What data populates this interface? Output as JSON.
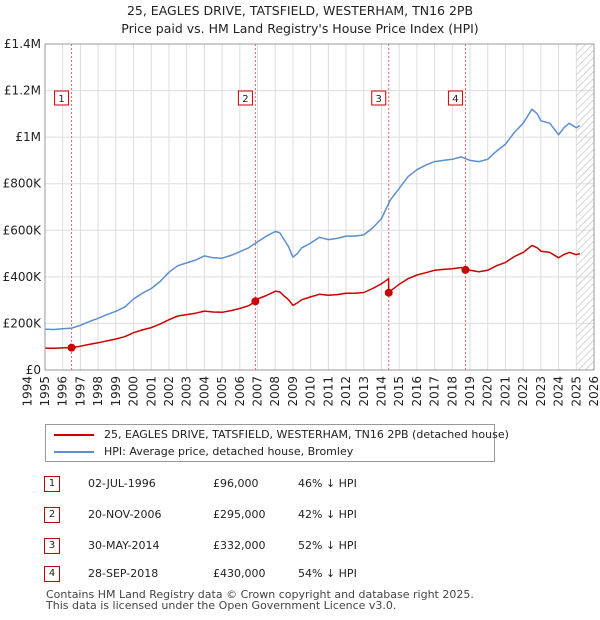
{
  "title_line1": "25, EAGLES DRIVE, TATSFIELD, WESTERHAM, TN16 2PB",
  "title_line2": "Price paid vs. HM Land Registry's House Price Index (HPI)",
  "colors": {
    "price": "#cc0000",
    "hpi": "#5b8fd0",
    "grid": "#dddddd",
    "hatch": "#c8c8c8",
    "marker_line": "#e06666"
  },
  "legend": {
    "price_label": "25, EAGLES DRIVE, TATSFIELD, WESTERHAM, TN16 2PB (detached house)",
    "hpi_label": "HPI: Average price, detached house, Bromley"
  },
  "transactions": [
    {
      "num": "1",
      "date": "02-JUL-1996",
      "price": "£96,000",
      "hpi": "46% ↓ HPI"
    },
    {
      "num": "2",
      "date": "20-NOV-2006",
      "price": "£295,000",
      "hpi": "42% ↓ HPI"
    },
    {
      "num": "3",
      "date": "30-MAY-2014",
      "price": "£332,000",
      "hpi": "52% ↓ HPI"
    },
    {
      "num": "4",
      "date": "28-SEP-2018",
      "price": "£430,000",
      "hpi": "54% ↓ HPI"
    }
  ],
  "footer_line1": "Contains HM Land Registry data © Crown copyright and database right 2025.",
  "footer_line2": "This data is licensed under the Open Government Licence v3.0.",
  "chart_data": {
    "type": "line",
    "title": "25, EAGLES DRIVE, TATSFIELD, WESTERHAM, TN16 2PB",
    "subtitle": "Price paid vs. HM Land Registry's House Price Index (HPI)",
    "xlim": [
      1995,
      2026
    ],
    "ylim": [
      0,
      1400000
    ],
    "yticks": [
      0,
      200000,
      400000,
      600000,
      800000,
      1000000,
      1200000,
      1400000
    ],
    "ytick_labels": [
      "£0",
      "£200K",
      "£400K",
      "£600K",
      "£800K",
      "£1M",
      "£1.2M",
      "£1.4M"
    ],
    "xticks": [
      1994,
      1995,
      1996,
      1997,
      1998,
      1999,
      2000,
      2001,
      2002,
      2003,
      2004,
      2005,
      2006,
      2007,
      2008,
      2009,
      2010,
      2011,
      2012,
      2013,
      2014,
      2015,
      2016,
      2017,
      2018,
      2019,
      2020,
      2021,
      2022,
      2023,
      2024,
      2025,
      2026
    ],
    "hatched_before": 1995,
    "hatched_after": 2025.0,
    "grid": true,
    "sales": [
      {
        "label": "1",
        "x": 1996.5,
        "y": 96000
      },
      {
        "label": "2",
        "x": 2006.88,
        "y": 295000
      },
      {
        "label": "3",
        "x": 2014.41,
        "y": 332000
      },
      {
        "label": "4",
        "x": 2018.74,
        "y": 430000
      }
    ],
    "series": [
      {
        "name": "HPI: Average price, detached house, Bromley",
        "x": [
          1995,
          1995.5,
          1996,
          1996.5,
          1997,
          1997.5,
          1998,
          1998.5,
          1999,
          1999.5,
          2000,
          2000.5,
          2001,
          2001.5,
          2002,
          2002.5,
          2003,
          2003.5,
          2004,
          2004.5,
          2005,
          2005.5,
          2006,
          2006.5,
          2007,
          2007.5,
          2008,
          2008.25,
          2008.5,
          2008.75,
          2009,
          2009.25,
          2009.5,
          2010,
          2010.5,
          2011,
          2011.5,
          2012,
          2012.5,
          2013,
          2013.5,
          2014,
          2014.5,
          2015,
          2015.5,
          2016,
          2016.5,
          2017,
          2017.5,
          2018,
          2018.5,
          2019,
          2019.5,
          2020,
          2020.5,
          2021,
          2021.5,
          2022,
          2022.5,
          2022.8,
          2023,
          2023.5,
          2024,
          2024.3,
          2024.6,
          2025,
          2025.2
        ],
        "values": [
          175000,
          174000,
          177000,
          180000,
          192000,
          208000,
          222000,
          238000,
          252000,
          270000,
          305000,
          330000,
          350000,
          380000,
          420000,
          448000,
          460000,
          472000,
          490000,
          482000,
          480000,
          492000,
          508000,
          525000,
          550000,
          575000,
          595000,
          590000,
          560000,
          530000,
          485000,
          500000,
          525000,
          545000,
          570000,
          560000,
          565000,
          575000,
          575000,
          580000,
          610000,
          650000,
          730000,
          780000,
          830000,
          860000,
          880000,
          895000,
          900000,
          905000,
          915000,
          900000,
          895000,
          905000,
          940000,
          970000,
          1020000,
          1060000,
          1120000,
          1100000,
          1070000,
          1060000,
          1010000,
          1040000,
          1060000,
          1040000,
          1050000
        ]
      },
      {
        "name": "25, EAGLES DRIVE, TATSFIELD, WESTERHAM, TN16 2PB (detached house)",
        "x": [
          1995,
          1995.5,
          1996,
          1996.5,
          1997,
          1997.5,
          1998,
          1998.5,
          1999,
          1999.5,
          2000,
          2000.5,
          2001,
          2001.5,
          2002,
          2002.5,
          2003,
          2003.5,
          2004,
          2004.5,
          2005,
          2005.5,
          2006,
          2006.5,
          2006.88,
          2007,
          2007.5,
          2008,
          2008.25,
          2008.5,
          2008.75,
          2009,
          2009.25,
          2009.5,
          2010,
          2010.5,
          2011,
          2011.5,
          2012,
          2012.5,
          2013,
          2013.5,
          2014,
          2014.4,
          2014.41,
          2014.6,
          2015,
          2015.5,
          2016,
          2016.5,
          2017,
          2017.5,
          2018,
          2018.5,
          2018.74,
          2019,
          2019.5,
          2020,
          2020.5,
          2021,
          2021.5,
          2022,
          2022.5,
          2022.8,
          2023,
          2023.5,
          2024,
          2024.3,
          2024.6,
          2025,
          2025.2
        ],
        "values": [
          94000,
          93500,
          95000,
          96000,
          102000,
          110000,
          117000,
          125000,
          133000,
          143000,
          160000,
          172000,
          182000,
          197000,
          216000,
          232000,
          238000,
          244000,
          253000,
          249000,
          248000,
          255000,
          264000,
          276000,
          295000,
          305000,
          320000,
          338000,
          336000,
          318000,
          302000,
          278000,
          288000,
          302000,
          314000,
          325000,
          321000,
          324000,
          330000,
          330000,
          333000,
          350000,
          370000,
          392000,
          332000,
          345000,
          368000,
          392000,
          408000,
          418000,
          428000,
          432000,
          435000,
          440000,
          430000,
          428000,
          422000,
          428000,
          448000,
          462000,
          487000,
          505000,
          535000,
          525000,
          510000,
          505000,
          482000,
          496000,
          505000,
          495000,
          500000
        ]
      }
    ]
  }
}
